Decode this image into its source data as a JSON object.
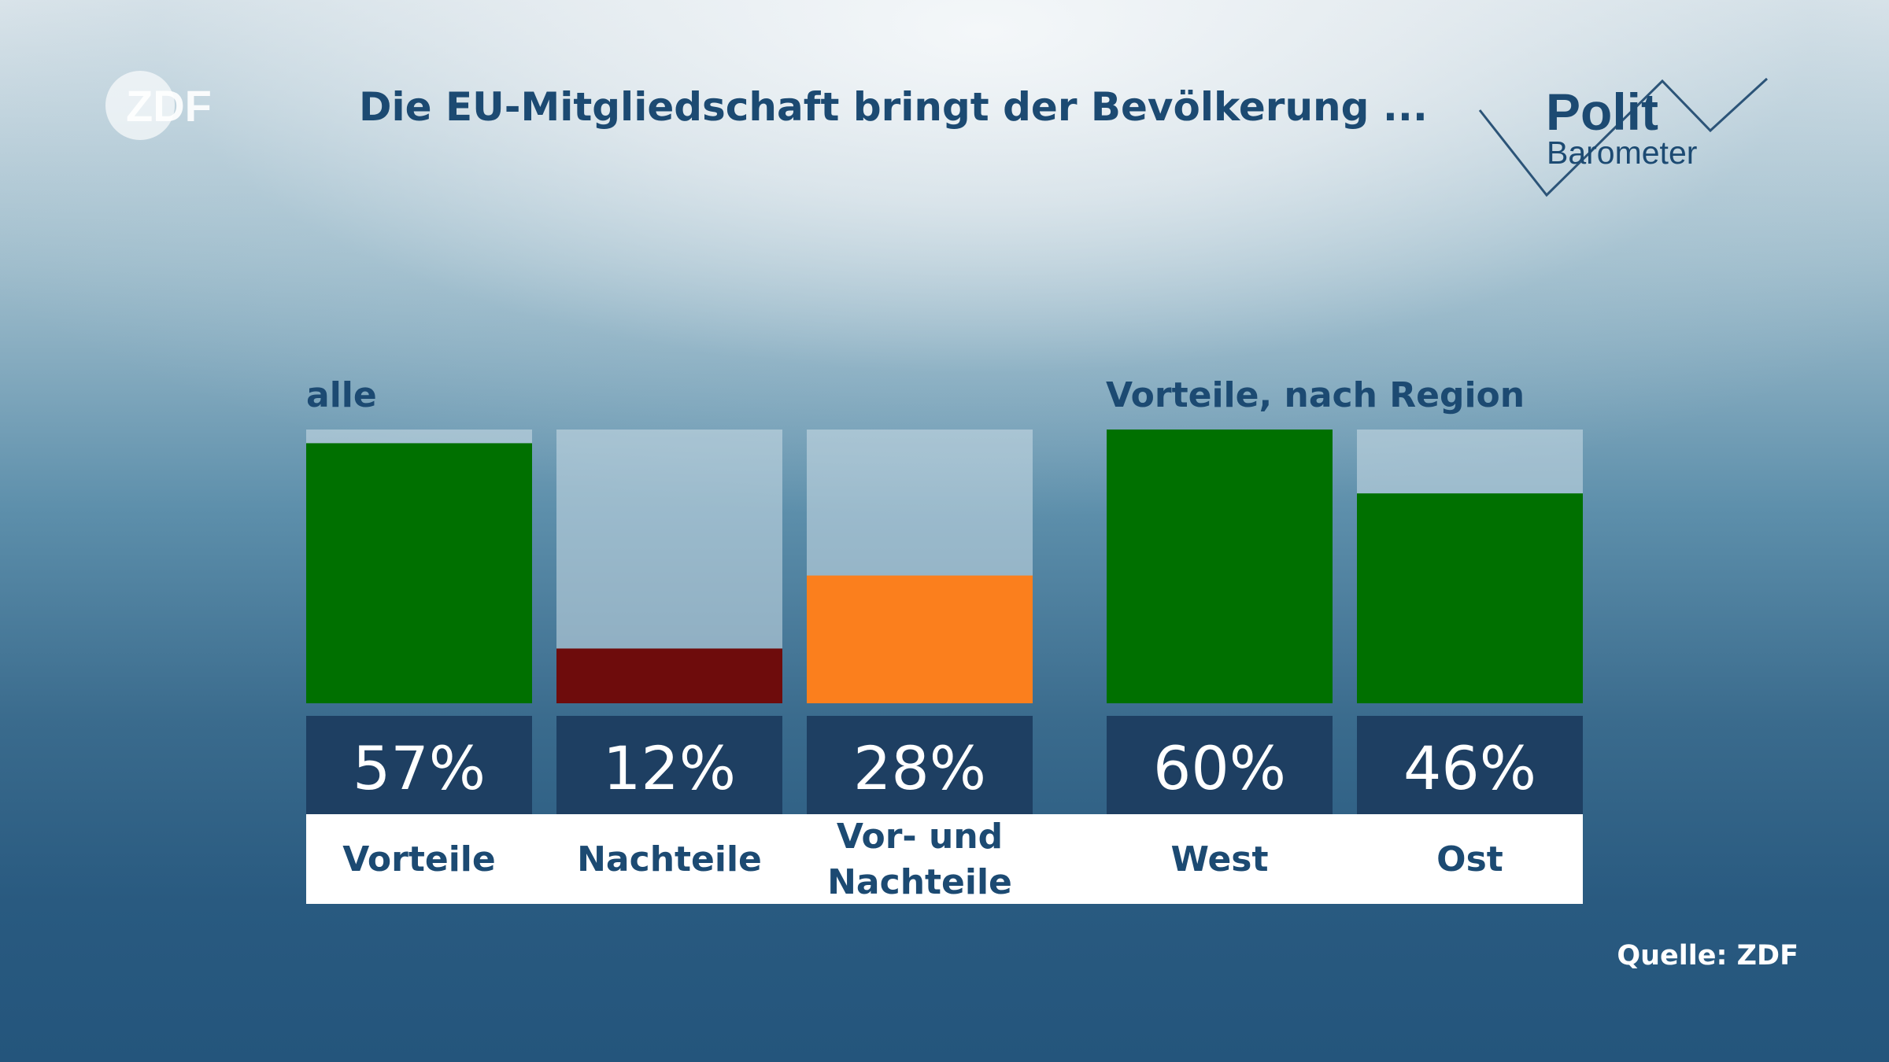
{
  "header": {
    "title": "Die EU-Mitgliedschaft bringt der Bevölkerung ...",
    "logo_text": "ZDF",
    "brand_line1": "Polit",
    "brand_line2": "Barometer"
  },
  "footer": {
    "source": "Quelle: ZDF"
  },
  "colors": {
    "title": "#1c4a72",
    "value_box": "#1e3f62",
    "track": "rgba(205,222,232,0.55)",
    "label_bg": "#ffffff",
    "label_text": "#1c4a72"
  },
  "chart_data": [
    {
      "type": "bar",
      "title": "alle",
      "categories": [
        "Vorteile",
        "Nachteile",
        "Vor- und Nachteile"
      ],
      "values": [
        57,
        12,
        28
      ],
      "value_labels": [
        "57%",
        "12%",
        "28%"
      ],
      "colors": [
        "#007000",
        "#6e0c0c",
        "#fb7f1d"
      ],
      "ylim": [
        0,
        60
      ]
    },
    {
      "type": "bar",
      "title": "Vorteile, nach Region",
      "categories": [
        "West",
        "Ost"
      ],
      "values": [
        60,
        46
      ],
      "value_labels": [
        "60%",
        "46%"
      ],
      "colors": [
        "#007000",
        "#007000"
      ],
      "ylim": [
        0,
        60
      ]
    }
  ]
}
